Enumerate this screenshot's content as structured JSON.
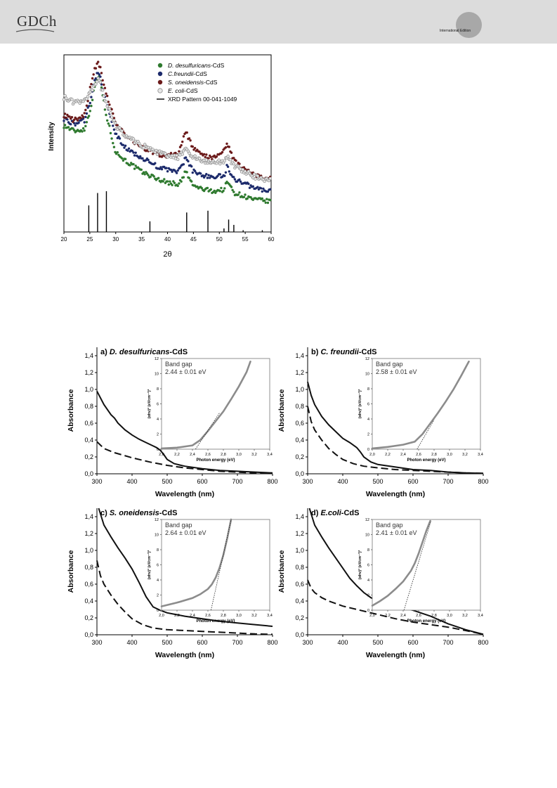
{
  "header": {
    "logo_text": "GDCh",
    "badge_text": "International Edition",
    "background_color": "#dcdcdc"
  },
  "chart_data": [
    {
      "id": "xrd",
      "type": "scatter",
      "title": "",
      "xlabel": "2θ",
      "ylabel": "Intensity",
      "xlim": [
        20,
        60
      ],
      "xticks": [
        20,
        25,
        30,
        35,
        40,
        45,
        50,
        55,
        60
      ],
      "y_ticks_shown": false,
      "grid": false,
      "legend_position": "top-right",
      "series": [
        {
          "name": "D. desulfuricans",
          "suffix": "-CdS",
          "marker": "filled-circle",
          "color": "#2f7a2f",
          "x": [
            20,
            22,
            24,
            25,
            26,
            26.5,
            27,
            28,
            30,
            32,
            35,
            38,
            40,
            42,
            43,
            43.5,
            44,
            45,
            47,
            49,
            51,
            51.5,
            52,
            53,
            55,
            57,
            58,
            60
          ],
          "y": [
            0.6,
            0.57,
            0.58,
            0.68,
            0.83,
            0.88,
            0.86,
            0.68,
            0.45,
            0.4,
            0.34,
            0.3,
            0.28,
            0.27,
            0.3,
            0.35,
            0.31,
            0.26,
            0.24,
            0.23,
            0.24,
            0.29,
            0.26,
            0.22,
            0.2,
            0.18,
            0.18,
            0.17
          ]
        },
        {
          "name": "C.freundii",
          "suffix": "-CdS",
          "marker": "filled-circle",
          "color": "#1c2a6b",
          "x": [
            20,
            22,
            24,
            25,
            26,
            26.5,
            27,
            28,
            30,
            32,
            35,
            38,
            40,
            42,
            43,
            43.5,
            44,
            45,
            47,
            49,
            51,
            51.5,
            52,
            53,
            55,
            57,
            58,
            60
          ],
          "y": [
            0.64,
            0.61,
            0.63,
            0.73,
            0.86,
            0.9,
            0.88,
            0.74,
            0.55,
            0.47,
            0.42,
            0.37,
            0.35,
            0.34,
            0.38,
            0.43,
            0.39,
            0.34,
            0.32,
            0.31,
            0.32,
            0.37,
            0.34,
            0.3,
            0.27,
            0.25,
            0.24,
            0.23
          ]
        },
        {
          "name": "S. oneidensis",
          "suffix": "-CdS",
          "marker": "filled-circle",
          "color": "#6b1a1a",
          "x": [
            20,
            22,
            24,
            25,
            26,
            26.5,
            27,
            28,
            30,
            32,
            35,
            38,
            40,
            42,
            43,
            43.5,
            44,
            45,
            47,
            49,
            51,
            51.5,
            52,
            53,
            55,
            57,
            58,
            60
          ],
          "y": [
            0.66,
            0.63,
            0.66,
            0.8,
            0.92,
            0.96,
            0.93,
            0.8,
            0.61,
            0.54,
            0.48,
            0.44,
            0.43,
            0.44,
            0.52,
            0.57,
            0.53,
            0.47,
            0.43,
            0.42,
            0.46,
            0.5,
            0.46,
            0.4,
            0.35,
            0.32,
            0.31,
            0.3
          ]
        },
        {
          "name": "E. coli",
          "suffix": "-CdS",
          "marker": "open-circle",
          "color": "#8a8a8a",
          "x": [
            20,
            22,
            24,
            25,
            26,
            26.5,
            27,
            28,
            30,
            32,
            35,
            38,
            40,
            42,
            43,
            43.5,
            44,
            45,
            47,
            49,
            51,
            51.5,
            52,
            53,
            55,
            57,
            58,
            60
          ],
          "y": [
            0.76,
            0.73,
            0.74,
            0.78,
            0.84,
            0.86,
            0.84,
            0.74,
            0.6,
            0.54,
            0.49,
            0.45,
            0.43,
            0.42,
            0.45,
            0.48,
            0.45,
            0.42,
            0.4,
            0.39,
            0.4,
            0.43,
            0.4,
            0.37,
            0.34,
            0.31,
            0.3,
            0.29
          ]
        }
      ],
      "reference": {
        "name": "XRD Pattern 00-041-1049",
        "style": "vertical-lines",
        "x": [
          24.8,
          26.5,
          28.2,
          36.6,
          43.7,
          47.8,
          50.9,
          51.8,
          52.8,
          54.6,
          58.3
        ],
        "y": [
          0.15,
          0.22,
          0.23,
          0.06,
          0.11,
          0.12,
          0.02,
          0.07,
          0.04,
          0.01,
          0.01
        ]
      }
    },
    {
      "id": "panel-a",
      "type": "line",
      "panel_label": "a)",
      "title": "D. desulfuricans",
      "title_suffix": "-CdS",
      "xlabel": "Wavelength (nm)",
      "ylabel": "Absorbance",
      "xlim": [
        300,
        800
      ],
      "ylim": [
        0,
        1.5
      ],
      "xticks": [
        300,
        400,
        500,
        600,
        700,
        800
      ],
      "yticks": [
        "0,0",
        "0,2",
        "0,4",
        "0,6",
        "0,8",
        "1,0",
        "1,2",
        "1,4"
      ],
      "series": [
        {
          "style": "solid",
          "x": [
            300,
            320,
            340,
            350,
            360,
            380,
            400,
            420,
            440,
            460,
            470,
            480,
            490,
            500,
            520,
            550,
            600,
            650,
            700,
            750,
            800
          ],
          "y": [
            0.98,
            0.82,
            0.7,
            0.66,
            0.6,
            0.52,
            0.46,
            0.41,
            0.37,
            0.33,
            0.31,
            0.28,
            0.23,
            0.17,
            0.12,
            0.09,
            0.06,
            0.04,
            0.03,
            0.02,
            0.01
          ]
        },
        {
          "style": "dashed",
          "x": [
            300,
            320,
            350,
            400,
            450,
            500,
            550,
            600,
            650,
            700,
            750,
            800
          ],
          "y": [
            0.38,
            0.3,
            0.25,
            0.19,
            0.14,
            0.1,
            0.07,
            0.05,
            0.03,
            0.02,
            0.01,
            0.005
          ]
        }
      ],
      "inset": {
        "title": "Band gap",
        "value": "2.44 ± 0.01 eV",
        "xlabel": "Photon energy (eV)",
        "ylabel": "(αhν)² (eVcm⁻¹)²",
        "xlim": [
          2.0,
          3.4
        ],
        "ylim": [
          0,
          12
        ],
        "xticks": [
          "2,0",
          "2,2",
          "2,4",
          "2,6",
          "2,8",
          "3,0",
          "3,2",
          "3,4"
        ],
        "yticks": [
          0,
          2,
          4,
          6,
          8,
          10,
          12
        ],
        "curve": {
          "x": [
            2.0,
            2.2,
            2.4,
            2.5,
            2.6,
            2.7,
            2.8,
            2.9,
            3.0,
            3.1,
            3.15
          ],
          "y": [
            0.1,
            0.2,
            0.5,
            1.2,
            2.4,
            3.7,
            5.0,
            6.6,
            8.3,
            10.2,
            11.6
          ]
        },
        "fit": {
          "x": [
            2.44,
            2.75
          ],
          "y": [
            0,
            4.8
          ]
        }
      }
    },
    {
      "id": "panel-b",
      "type": "line",
      "panel_label": "b)",
      "title": "C. freundii",
      "title_suffix": "-CdS",
      "xlabel": "Wavelength (nm)",
      "ylabel": "Absorbance",
      "xlim": [
        300,
        800
      ],
      "ylim": [
        0,
        1.5
      ],
      "xticks": [
        300,
        400,
        500,
        600,
        700,
        800
      ],
      "yticks": [
        "0,0",
        "0,2",
        "0,4",
        "0,6",
        "0,8",
        "1,0",
        "1,2",
        "1,4"
      ],
      "series": [
        {
          "style": "solid",
          "x": [
            300,
            310,
            320,
            340,
            360,
            380,
            400,
            420,
            430,
            440,
            450,
            460,
            480,
            500,
            550,
            600,
            650,
            700,
            750,
            800
          ],
          "y": [
            1.09,
            0.93,
            0.82,
            0.68,
            0.58,
            0.5,
            0.42,
            0.37,
            0.34,
            0.31,
            0.26,
            0.2,
            0.14,
            0.11,
            0.08,
            0.05,
            0.04,
            0.02,
            0.01,
            0.005
          ]
        },
        {
          "style": "dashed",
          "x": [
            300,
            310,
            320,
            340,
            360,
            380,
            400,
            430,
            460,
            500,
            550,
            600,
            650,
            700,
            750,
            800
          ],
          "y": [
            0.8,
            0.62,
            0.52,
            0.4,
            0.3,
            0.23,
            0.17,
            0.12,
            0.09,
            0.07,
            0.05,
            0.04,
            0.03,
            0.02,
            0.01,
            0.005
          ]
        }
      ],
      "inset": {
        "title": "Band gap",
        "value": "2.58 ± 0.01 eV",
        "xlabel": "Photon energy (eV)",
        "ylabel": "(αhν)² (eVcm⁻¹)²",
        "xlim": [
          2.0,
          3.4
        ],
        "ylim": [
          0,
          12
        ],
        "xticks": [
          "2,0",
          "2,2",
          "2,4",
          "2,6",
          "2,8",
          "3,0",
          "3,2",
          "3,4"
        ],
        "yticks": [
          0,
          2,
          4,
          6,
          8,
          10,
          12
        ],
        "curve": {
          "x": [
            2.0,
            2.2,
            2.4,
            2.55,
            2.65,
            2.75,
            2.85,
            2.95,
            3.05,
            3.15,
            3.25
          ],
          "y": [
            0.1,
            0.3,
            0.6,
            1.0,
            2.0,
            3.4,
            4.8,
            6.3,
            7.9,
            9.7,
            11.6
          ]
        },
        "fit": {
          "x": [
            2.58,
            2.8
          ],
          "y": [
            0,
            3.9
          ]
        }
      }
    },
    {
      "id": "panel-c",
      "type": "line",
      "panel_label": "c)",
      "title": "S. oneidensis",
      "title_suffix": "-CdS",
      "xlabel": "Wavelength (nm)",
      "ylabel": "Absorbance",
      "xlim": [
        300,
        800
      ],
      "ylim": [
        0,
        1.5
      ],
      "xticks": [
        300,
        400,
        500,
        600,
        700,
        800
      ],
      "yticks": [
        "0,0",
        "0,2",
        "0,4",
        "0,6",
        "0,8",
        "1,0",
        "1,2",
        "1,4"
      ],
      "series": [
        {
          "style": "solid",
          "x": [
            305,
            320,
            340,
            360,
            380,
            400,
            420,
            440,
            460,
            480,
            500,
            550,
            600,
            650,
            700,
            750,
            800
          ],
          "y": [
            1.5,
            1.3,
            1.16,
            1.03,
            0.91,
            0.78,
            0.62,
            0.45,
            0.33,
            0.29,
            0.26,
            0.22,
            0.19,
            0.16,
            0.14,
            0.12,
            0.1
          ]
        },
        {
          "style": "dashed",
          "x": [
            300,
            310,
            320,
            340,
            360,
            380,
            400,
            430,
            460,
            500,
            550,
            600,
            650,
            700,
            750,
            800
          ],
          "y": [
            0.88,
            0.7,
            0.6,
            0.47,
            0.36,
            0.27,
            0.19,
            0.12,
            0.08,
            0.06,
            0.05,
            0.04,
            0.03,
            0.02,
            0.01,
            0.005
          ]
        }
      ],
      "inset": {
        "title": "Band gap",
        "value": "2.64 ± 0.01 eV",
        "xlabel": "Photon energy (eV)",
        "ylabel": "(αhν)² (eVcm⁻¹)²",
        "xlim": [
          2.0,
          3.4
        ],
        "ylim": [
          0,
          12
        ],
        "xticks": [
          "2,0",
          "2,2",
          "2,4",
          "2,6",
          "2,8",
          "3,0",
          "3,2",
          "3,4"
        ],
        "yticks": [
          0,
          2,
          4,
          6,
          8,
          10,
          12
        ],
        "curve": {
          "x": [
            2.0,
            2.2,
            2.4,
            2.5,
            2.6,
            2.65,
            2.7,
            2.75,
            2.8,
            2.85,
            2.9
          ],
          "y": [
            0.5,
            1.0,
            1.6,
            2.1,
            2.8,
            3.4,
            4.3,
            5.6,
            7.3,
            9.5,
            12.0
          ]
        },
        "fit": {
          "x": [
            2.64,
            2.9
          ],
          "y": [
            0,
            12.0
          ]
        }
      }
    },
    {
      "id": "panel-d",
      "type": "line",
      "panel_label": "d)",
      "title": "E.coli",
      "title_suffix": "-CdS",
      "xlabel": "Wavelength (nm)",
      "ylabel": "Absorbance",
      "xlim": [
        300,
        800
      ],
      "ylim": [
        0,
        1.5
      ],
      "xticks": [
        300,
        400,
        500,
        600,
        700,
        800
      ],
      "yticks": [
        "0,0",
        "0,2",
        "0,4",
        "0,6",
        "0,8",
        "1,0",
        "1,2",
        "1,4"
      ],
      "series": [
        {
          "style": "solid",
          "x": [
            305,
            320,
            340,
            360,
            380,
            400,
            420,
            440,
            460,
            480,
            500,
            520,
            550,
            600,
            650,
            700,
            750,
            800
          ],
          "y": [
            1.5,
            1.3,
            1.16,
            1.03,
            0.91,
            0.79,
            0.67,
            0.58,
            0.5,
            0.44,
            0.4,
            0.37,
            0.34,
            0.29,
            0.22,
            0.13,
            0.06,
            0.005
          ]
        },
        {
          "style": "dashed",
          "x": [
            300,
            310,
            320,
            340,
            360,
            380,
            400,
            450,
            500,
            550,
            600,
            650,
            700,
            750,
            800
          ],
          "y": [
            0.65,
            0.55,
            0.5,
            0.44,
            0.4,
            0.37,
            0.34,
            0.29,
            0.24,
            0.19,
            0.15,
            0.12,
            0.09,
            0.05,
            0.005
          ]
        }
      ],
      "inset": {
        "title": "Band gap",
        "value": "2.41 ± 0.01 eV",
        "xlabel": "Photon energy (eV)",
        "ylabel": "(αhν)² (eVcm⁻¹)²",
        "xlim": [
          2.0,
          3.4
        ],
        "ylim": [
          0,
          12
        ],
        "xticks": [
          "2,0",
          "2,2",
          "2,4",
          "2,6",
          "2,8",
          "3,0",
          "3,2",
          "3,4"
        ],
        "yticks": [
          0,
          2,
          4,
          6,
          8,
          10,
          12
        ],
        "curve": {
          "x": [
            2.0,
            2.1,
            2.2,
            2.3,
            2.4,
            2.5,
            2.55,
            2.6,
            2.65,
            2.7,
            2.75
          ],
          "y": [
            0.6,
            1.2,
            1.9,
            2.8,
            3.8,
            5.2,
            6.2,
            7.5,
            9.0,
            10.5,
            11.8
          ]
        },
        "fit": {
          "x": [
            2.41,
            2.76
          ],
          "y": [
            0,
            11.8
          ]
        }
      }
    }
  ]
}
